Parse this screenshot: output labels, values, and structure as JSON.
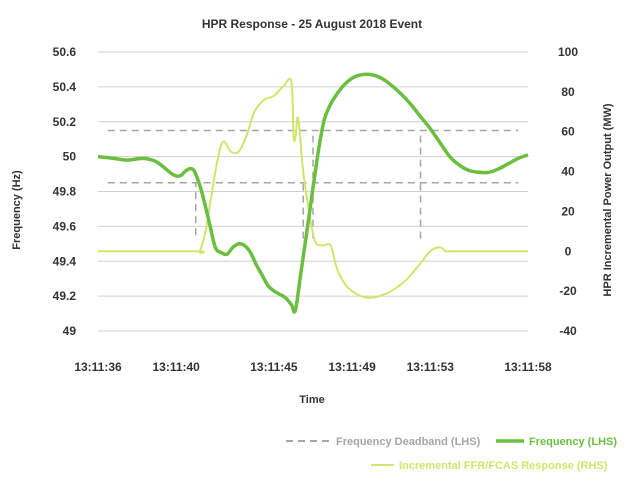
{
  "chart_data": {
    "type": "line",
    "title": "HPR Response - 25 August 2018 Event",
    "xlabel": "Time",
    "ylabel_left": "Frequency (Hz)",
    "ylabel_right": "HPR Incremental Power Output (MW)",
    "x_unit": "seconds after 13:11:36",
    "x_ticks": [
      "13:11:36",
      "13:11:40",
      "13:11:45",
      "13:11:49",
      "13:11:53",
      "13:11:58"
    ],
    "xlim_seconds": [
      0,
      22
    ],
    "ylim_left": [
      49,
      50.6
    ],
    "y_ticks_left": [
      "49",
      "49.2",
      "49.4",
      "49.6",
      "49.8",
      "50",
      "50.2",
      "50.4",
      "50.6"
    ],
    "ylim_right": [
      -40,
      100
    ],
    "y_ticks_right": [
      "-40",
      "-20",
      "0",
      "20",
      "40",
      "60",
      "80",
      "100"
    ],
    "grid": "horizontal",
    "legend_position": "bottom-right",
    "colors": {
      "deadband": "#a6a6a6",
      "frequency": "#6abf3f",
      "ffr": "#d3e46b",
      "grid": "#d0d0d0",
      "text": "#333333"
    },
    "series": [
      {
        "name": "Frequency Deadband (LHS)",
        "axis": "left",
        "style": "dashed",
        "bounds": [
          49.85,
          50.15
        ],
        "markers": [
          {
            "x": 5.0,
            "low": 49.55,
            "high": 49.85
          },
          {
            "x": 10.5,
            "low": 49.53,
            "high": 49.85
          },
          {
            "x": 11.0,
            "low": 49.53,
            "high": 50.15
          },
          {
            "x": 16.5,
            "low": 49.53,
            "high": 50.15
          }
        ]
      },
      {
        "name": "Frequency (LHS)",
        "axis": "left",
        "points": [
          [
            0,
            50.0
          ],
          [
            0.8,
            49.99
          ],
          [
            1.5,
            49.98
          ],
          [
            2.3,
            49.99
          ],
          [
            3.0,
            49.97
          ],
          [
            3.8,
            49.9
          ],
          [
            4.2,
            49.89
          ],
          [
            4.5,
            49.92
          ],
          [
            4.8,
            49.93
          ],
          [
            5.0,
            49.9
          ],
          [
            5.3,
            49.8
          ],
          [
            5.7,
            49.62
          ],
          [
            6.0,
            49.48
          ],
          [
            6.3,
            49.45
          ],
          [
            6.6,
            49.44
          ],
          [
            6.9,
            49.48
          ],
          [
            7.2,
            49.5
          ],
          [
            7.5,
            49.49
          ],
          [
            7.8,
            49.45
          ],
          [
            8.1,
            49.38
          ],
          [
            8.4,
            49.32
          ],
          [
            8.7,
            49.26
          ],
          [
            9.0,
            49.23
          ],
          [
            9.3,
            49.21
          ],
          [
            9.6,
            49.19
          ],
          [
            9.9,
            49.15
          ],
          [
            10.1,
            49.12
          ],
          [
            10.4,
            49.35
          ],
          [
            10.7,
            49.58
          ],
          [
            11.0,
            49.82
          ],
          [
            11.3,
            50.05
          ],
          [
            11.6,
            50.22
          ],
          [
            12.0,
            50.32
          ],
          [
            12.5,
            50.4
          ],
          [
            13.0,
            50.45
          ],
          [
            13.5,
            50.47
          ],
          [
            14.0,
            50.47
          ],
          [
            14.5,
            50.45
          ],
          [
            15.0,
            50.41
          ],
          [
            15.5,
            50.36
          ],
          [
            16.0,
            50.3
          ],
          [
            16.5,
            50.23
          ],
          [
            17.0,
            50.16
          ],
          [
            17.5,
            50.08
          ],
          [
            18.0,
            50.0
          ],
          [
            18.5,
            49.95
          ],
          [
            19.0,
            49.92
          ],
          [
            19.5,
            49.91
          ],
          [
            20.0,
            49.91
          ],
          [
            20.5,
            49.93
          ],
          [
            21.0,
            49.96
          ],
          [
            21.5,
            49.99
          ],
          [
            22.0,
            50.01
          ]
        ]
      },
      {
        "name": "Incremental FFR/FCAS Response (RHS)",
        "axis": "right",
        "points": [
          [
            0,
            0
          ],
          [
            5.0,
            0
          ],
          [
            5.2,
            0
          ],
          [
            5.5,
            10
          ],
          [
            5.8,
            28
          ],
          [
            6.1,
            45
          ],
          [
            6.4,
            55
          ],
          [
            6.8,
            50
          ],
          [
            7.2,
            50
          ],
          [
            7.6,
            58
          ],
          [
            8.0,
            70
          ],
          [
            8.5,
            76
          ],
          [
            9.0,
            78
          ],
          [
            9.5,
            83
          ],
          [
            9.9,
            85
          ],
          [
            10.0,
            58
          ],
          [
            10.1,
            57
          ],
          [
            10.2,
            67
          ],
          [
            10.3,
            62
          ],
          [
            10.5,
            40
          ],
          [
            10.8,
            20
          ],
          [
            11.1,
            5
          ],
          [
            11.5,
            3
          ],
          [
            11.9,
            3
          ],
          [
            12.2,
            -8
          ],
          [
            12.6,
            -16
          ],
          [
            13.0,
            -20
          ],
          [
            13.6,
            -23
          ],
          [
            14.2,
            -23
          ],
          [
            15.0,
            -20
          ],
          [
            15.8,
            -14
          ],
          [
            16.5,
            -6
          ],
          [
            17.0,
            0
          ],
          [
            17.5,
            2
          ],
          [
            17.8,
            0
          ],
          [
            18.2,
            0
          ],
          [
            22.0,
            0
          ]
        ]
      }
    ]
  }
}
